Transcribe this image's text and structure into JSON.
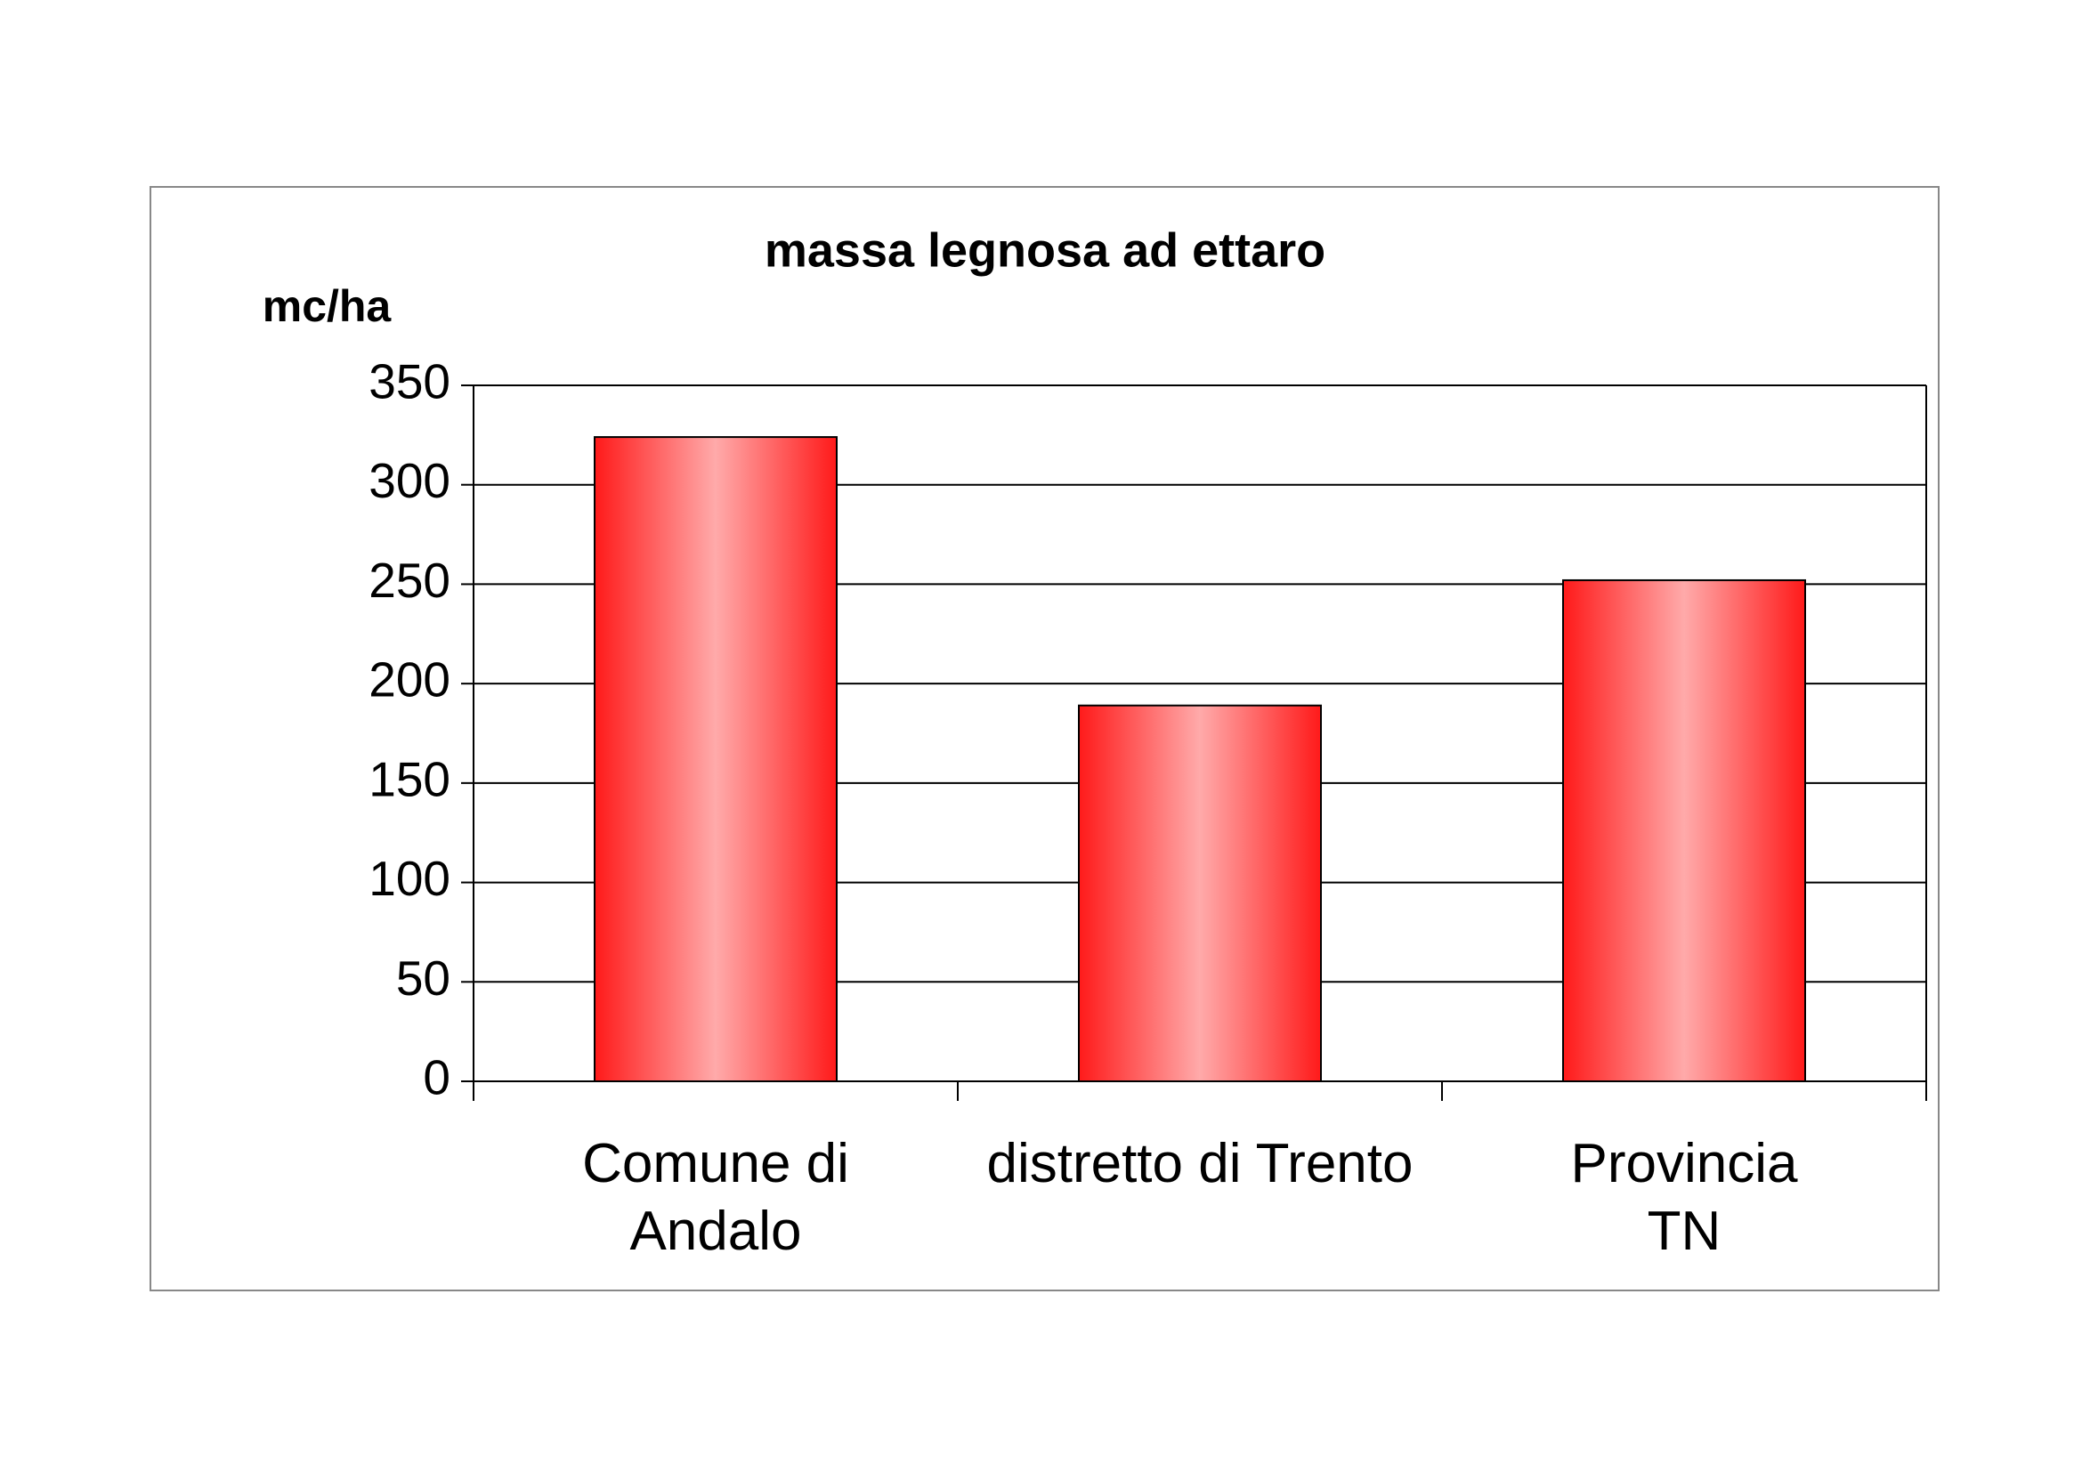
{
  "chart_data": {
    "type": "bar",
    "title": "massa legnosa ad ettaro",
    "y_label": "mc/ha",
    "categories": [
      "Comune di Andalo",
      "distretto di Trento",
      "Provincia TN"
    ],
    "values": [
      324,
      189,
      252
    ],
    "color": "#ff1a1a",
    "ylim": [
      0,
      350
    ],
    "yticks": [
      0,
      50,
      100,
      150,
      200,
      250,
      300,
      350
    ],
    "grid": true
  }
}
